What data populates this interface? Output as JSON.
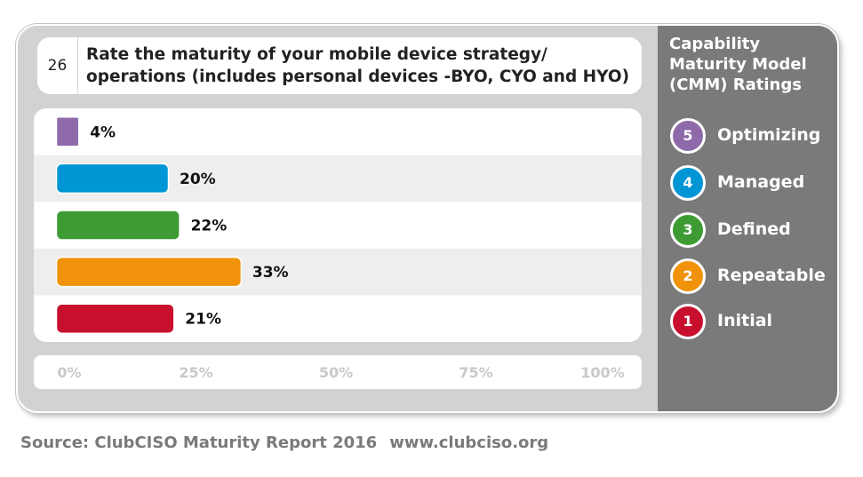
{
  "question": {
    "number": "26",
    "text_line1": "Rate the maturity of your mobile device strategy/",
    "text_line2": "operations (includes personal devices -BYO, CYO and HYO)"
  },
  "legend": {
    "title_lines": [
      "Capability",
      "Maturity Model",
      "(CMM) Ratings"
    ],
    "items": [
      {
        "level": "5",
        "label": "Optimizing",
        "color": "#8e6aab"
      },
      {
        "level": "4",
        "label": "Managed",
        "color": "#0096d6"
      },
      {
        "level": "3",
        "label": "Defined",
        "color": "#3e9b34"
      },
      {
        "level": "2",
        "label": "Repeatable",
        "color": "#f0920a"
      },
      {
        "level": "1",
        "label": "Initial",
        "color": "#c8102e"
      }
    ]
  },
  "chart_data": {
    "type": "bar",
    "orientation": "horizontal",
    "categories": [
      "Optimizing",
      "Managed",
      "Defined",
      "Repeatable",
      "Initial"
    ],
    "values": [
      4,
      20,
      22,
      33,
      21
    ],
    "value_labels": [
      "4%",
      "20%",
      "22%",
      "33%",
      "21%"
    ],
    "colors": [
      "#8e6aab",
      "#0096d6",
      "#3e9b34",
      "#f0920a",
      "#c8102e"
    ],
    "xlim": [
      0,
      100
    ],
    "x_ticks": [
      "0%",
      "25%",
      "50%",
      "75%",
      "100%"
    ],
    "grid": false
  },
  "source": {
    "text": "Source: ClubCISO Maturity Report 2016",
    "url": "www.clubciso.org"
  }
}
